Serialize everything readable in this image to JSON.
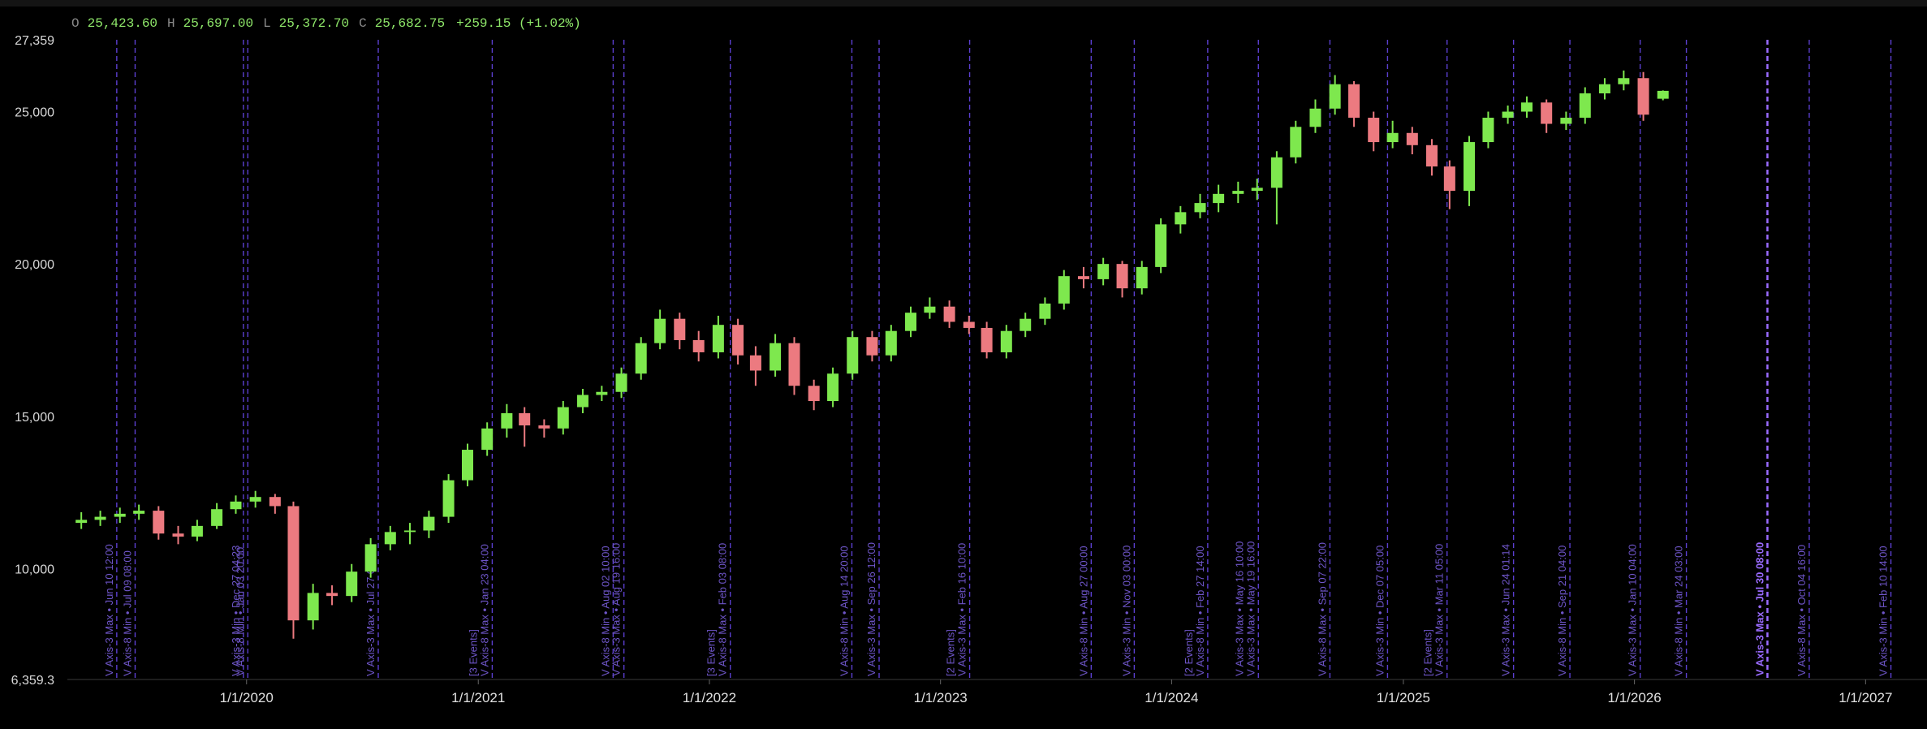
{
  "chart_data": {
    "type": "candlestick",
    "legend_ohlc": {
      "items": [
        {
          "key": "O",
          "value": "25,423.60"
        },
        {
          "key": "H",
          "value": "25,697.00"
        },
        {
          "key": "L",
          "value": "25,372.70"
        },
        {
          "key": "C",
          "value": "25,682.75"
        }
      ],
      "change": "+259.15 (+1.02%)"
    },
    "up_color": "#7ee84e",
    "down_color": "#ec7a80",
    "event_color": "#5b3fd0",
    "event_label_color": "#6e55c8",
    "highlight_color": "#9a6bff",
    "grid": false,
    "xlim": [
      "2019-03-24",
      "2027-04-08"
    ],
    "xticks": [
      {
        "value": "2020-01-01",
        "label": "1/1/2020"
      },
      {
        "value": "2021-01-01",
        "label": "1/1/2021"
      },
      {
        "value": "2022-01-01",
        "label": "1/1/2022"
      },
      {
        "value": "2023-01-01",
        "label": "1/1/2023"
      },
      {
        "value": "2024-01-01",
        "label": "1/1/2024"
      },
      {
        "value": "2025-01-01",
        "label": "1/1/2025"
      },
      {
        "value": "2026-01-01",
        "label": "1/1/2026"
      },
      {
        "value": "2027-01-01",
        "label": "1/1/2027"
      }
    ],
    "ylim": [
      6359.3,
      27359
    ],
    "yticks": [
      {
        "value": 27359,
        "label": "27,359"
      },
      {
        "value": 25000,
        "label": "25,000"
      },
      {
        "value": 20000,
        "label": "20,000"
      },
      {
        "value": 15000,
        "label": "15,000"
      },
      {
        "value": 10000,
        "label": "10,000"
      },
      {
        "value": 6359.3,
        "label": "6,359.3"
      }
    ],
    "x": [
      "2019-04",
      "2019-05",
      "2019-06",
      "2019-07",
      "2019-08",
      "2019-09",
      "2019-10",
      "2019-11",
      "2019-12",
      "2020-01",
      "2020-02",
      "2020-03",
      "2020-04",
      "2020-05",
      "2020-06",
      "2020-07",
      "2020-08",
      "2020-09",
      "2020-10",
      "2020-11",
      "2020-12",
      "2021-01",
      "2021-02",
      "2021-03",
      "2021-04",
      "2021-05",
      "2021-06",
      "2021-07",
      "2021-08",
      "2021-09",
      "2021-10",
      "2021-11",
      "2021-12",
      "2022-01",
      "2022-02",
      "2022-03",
      "2022-04",
      "2022-05",
      "2022-06",
      "2022-07",
      "2022-08",
      "2022-09",
      "2022-10",
      "2022-11",
      "2022-12",
      "2023-01",
      "2023-02",
      "2023-03",
      "2023-04",
      "2023-05",
      "2023-06",
      "2023-07",
      "2023-08",
      "2023-09",
      "2023-10",
      "2023-11",
      "2023-12",
      "2024-01",
      "2024-02",
      "2024-03",
      "2024-04",
      "2024-05",
      "2024-06",
      "2024-07",
      "2024-08",
      "2024-09",
      "2024-10",
      "2024-11",
      "2024-12",
      "2025-01",
      "2025-02",
      "2025-03",
      "2025-04",
      "2025-05",
      "2025-06",
      "2025-07",
      "2025-08",
      "2025-09",
      "2025-10",
      "2025-11",
      "2025-12",
      "2026-01",
      "2026-02"
    ],
    "open": [
      11500,
      11600,
      11700,
      11800,
      11900,
      11150,
      11050,
      11400,
      11950,
      12200,
      12350,
      12050,
      8300,
      9200,
      9100,
      9900,
      10800,
      11200,
      11250,
      11700,
      12900,
      13900,
      14600,
      15100,
      14700,
      14600,
      15300,
      15700,
      15800,
      16400,
      17400,
      18200,
      17500,
      17100,
      18000,
      17000,
      16500,
      17400,
      16000,
      15500,
      16400,
      17600,
      17000,
      17800,
      18400,
      18600,
      18100,
      17900,
      17100,
      17800,
      18200,
      18700,
      19600,
      19500,
      20000,
      19200,
      19900,
      21300,
      21700,
      22000,
      22300,
      22400,
      22500,
      23500,
      24500,
      25100,
      25900,
      24800,
      24000,
      24300,
      23900,
      23200,
      22400,
      24000,
      24800,
      25000,
      25300,
      24600,
      24800,
      25600,
      25900,
      26100,
      25423.6
    ],
    "high": [
      11850,
      11900,
      12000,
      12100,
      12050,
      11400,
      11600,
      12150,
      12400,
      12550,
      12450,
      12200,
      9500,
      9450,
      10150,
      11000,
      11400,
      11500,
      11900,
      13100,
      14100,
      14800,
      15400,
      15300,
      14900,
      15500,
      15900,
      16000,
      16600,
      17600,
      18500,
      18400,
      17800,
      18300,
      18200,
      17300,
      17700,
      17600,
      16200,
      16600,
      17800,
      17800,
      18000,
      18600,
      18900,
      18800,
      18300,
      18100,
      18000,
      18400,
      18900,
      19800,
      19900,
      20200,
      20100,
      20100,
      21500,
      21900,
      22300,
      22600,
      22700,
      22800,
      23700,
      24700,
      25400,
      26200,
      26000,
      25000,
      24700,
      24500,
      24100,
      23400,
      24200,
      25000,
      25200,
      25500,
      25400,
      25000,
      25800,
      26100,
      26350,
      26300,
      25697
    ],
    "low": [
      11300,
      11400,
      11500,
      11600,
      10950,
      10800,
      10900,
      11300,
      11800,
      12000,
      11800,
      7700,
      8000,
      8800,
      8900,
      9700,
      10600,
      10800,
      11000,
      11500,
      12700,
      13700,
      14300,
      14000,
      14300,
      14400,
      15100,
      15500,
      15600,
      16200,
      17200,
      17200,
      16800,
      16900,
      16700,
      16000,
      16300,
      15700,
      15200,
      15300,
      16200,
      16800,
      16800,
      17600,
      18200,
      17900,
      17700,
      16900,
      16900,
      17600,
      18000,
      18500,
      19200,
      19300,
      18900,
      19000,
      19700,
      21000,
      21500,
      21700,
      22000,
      22100,
      21300,
      23300,
      24300,
      24900,
      24500,
      23700,
      23800,
      23600,
      22900,
      21800,
      21900,
      23800,
      24600,
      24800,
      24300,
      24400,
      24600,
      25400,
      25700,
      24700,
      25372.7
    ],
    "close": [
      11600,
      11700,
      11800,
      11900,
      11150,
      11050,
      11400,
      11950,
      12200,
      12350,
      12050,
      8300,
      9200,
      9100,
      9900,
      10800,
      11200,
      11250,
      11700,
      12900,
      13900,
      14600,
      15100,
      14700,
      14600,
      15300,
      15700,
      15800,
      16400,
      17400,
      18200,
      17500,
      17100,
      18000,
      17000,
      16500,
      17400,
      16000,
      15500,
      16400,
      17600,
      17000,
      17800,
      18400,
      18600,
      18100,
      17900,
      17100,
      17800,
      18200,
      18700,
      19600,
      19500,
      20000,
      19200,
      19900,
      21300,
      21700,
      22000,
      22300,
      22400,
      22500,
      23500,
      24500,
      25100,
      25900,
      24800,
      24000,
      24300,
      23900,
      23200,
      22400,
      24000,
      24800,
      25000,
      25300,
      24600,
      24800,
      25600,
      25900,
      26100,
      24900,
      25682.75
    ],
    "events": [
      {
        "date": "2019-06-10",
        "labels": [
          "V Axis-3 Max • Jun 10 12:00"
        ]
      },
      {
        "date": "2019-07-09",
        "labels": [
          "V Axis-8 Min • Jul 09 08:00"
        ]
      },
      {
        "date": "2019-12-27",
        "labels": [
          "V Axis-3 Min • Dec 27 04:23"
        ]
      },
      {
        "date": "2020-01-03",
        "labels": [
          "V Axis-8 Min • Jan 03 20:00"
        ]
      },
      {
        "date": "2020-07-27",
        "labels": [
          "V Axis-3 Max • Jul 27 00:00"
        ]
      },
      {
        "date": "2021-01-23",
        "labels": [
          "V Axis-8 Max • Jan 23 04:00",
          "[3 Events]"
        ]
      },
      {
        "date": "2021-08-02",
        "labels": [
          "V Axis-8 Min • Aug 02 10:00"
        ]
      },
      {
        "date": "2021-08-19",
        "labels": [
          "V Axis-3 Max • Aug 19 16:00"
        ]
      },
      {
        "date": "2022-02-03",
        "labels": [
          "V Axis-8 Max • Feb 03 08:00",
          "[3 Events]"
        ]
      },
      {
        "date": "2022-08-14",
        "labels": [
          "V Axis-8 Min • Aug 14 20:00"
        ]
      },
      {
        "date": "2022-09-26",
        "labels": [
          "V Axis-3 Max • Sep 26 12:00"
        ]
      },
      {
        "date": "2023-02-16",
        "labels": [
          "V Axis-3 Max • Feb 16 10:00",
          "[2 Events]"
        ]
      },
      {
        "date": "2023-08-27",
        "labels": [
          "V Axis-8 Min • Aug 27 00:00"
        ]
      },
      {
        "date": "2023-11-03",
        "labels": [
          "V Axis-3 Min • Nov 03 00:00"
        ]
      },
      {
        "date": "2024-02-27",
        "labels": [
          "V Axis-8 Min • Feb 27 14:00",
          "[2 Events]"
        ]
      },
      {
        "date": "2024-05-17",
        "labels": [
          "V Axis-3 Max • May 19 16:00",
          "V Axis-3 Max • May 16 10:00"
        ]
      },
      {
        "date": "2024-09-07",
        "labels": [
          "V Axis-8 Max • Sep 07 22:00"
        ]
      },
      {
        "date": "2024-12-07",
        "labels": [
          "V Axis-3 Min • Dec 07 05:00"
        ]
      },
      {
        "date": "2025-03-11",
        "labels": [
          "V Axis-3 Max • Mar 11 05:00",
          "[2 Events]"
        ]
      },
      {
        "date": "2025-06-24",
        "labels": [
          "V Axis-3 Max • Jun 24 01:14"
        ]
      },
      {
        "date": "2025-09-21",
        "labels": [
          "V Axis-8 Min • Sep 21 04:00"
        ]
      },
      {
        "date": "2026-01-10",
        "labels": [
          "V Axis-3 Max • Jan 10 04:00"
        ]
      },
      {
        "date": "2026-03-24",
        "labels": [
          "V Axis-8 Min • Mar 24 03:00"
        ]
      },
      {
        "date": "2026-07-30",
        "labels": [
          "V Axis-3 Max • Jul 30 08:00"
        ],
        "highlight": true
      },
      {
        "date": "2026-10-04",
        "labels": [
          "V Axis-8 Max • Oct 04 16:00"
        ]
      },
      {
        "date": "2027-02-10",
        "labels": [
          "V Axis-3 Min • Feb 10 14:00"
        ]
      }
    ]
  }
}
